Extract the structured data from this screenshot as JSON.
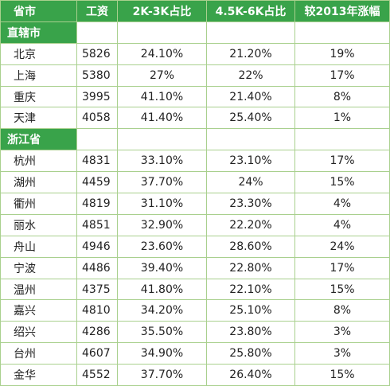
{
  "headers": [
    "省市",
    "工资",
    "2K-3K占比",
    "4.5K-6K占比",
    "较2013年涨幅"
  ],
  "groups": [
    {
      "name": "直辖市",
      "rows": [
        {
          "city": "北京",
          "salary": "5826",
          "p2k3k": "24.10%",
          "p45k6k": "21.20%",
          "growth": "19%"
        },
        {
          "city": "上海",
          "salary": "5380",
          "p2k3k": "27%",
          "p45k6k": "22%",
          "growth": "17%"
        },
        {
          "city": "重庆",
          "salary": "3995",
          "p2k3k": "41.10%",
          "p45k6k": "21.40%",
          "growth": "8%"
        },
        {
          "city": "天津",
          "salary": "4058",
          "p2k3k": "41.40%",
          "p45k6k": "25.40%",
          "growth": "1%"
        }
      ]
    },
    {
      "name": "浙江省",
      "rows": [
        {
          "city": "杭州",
          "salary": "4831",
          "p2k3k": "33.10%",
          "p45k6k": "23.10%",
          "growth": "17%"
        },
        {
          "city": "湖州",
          "salary": "4459",
          "p2k3k": "37.70%",
          "p45k6k": "24%",
          "growth": "15%"
        },
        {
          "city": "衢州",
          "salary": "4819",
          "p2k3k": "31.10%",
          "p45k6k": "23.30%",
          "growth": "4%"
        },
        {
          "city": "丽水",
          "salary": "4851",
          "p2k3k": "32.90%",
          "p45k6k": "22.20%",
          "growth": "4%"
        },
        {
          "city": "舟山",
          "salary": "4946",
          "p2k3k": "23.60%",
          "p45k6k": "28.60%",
          "growth": "24%"
        },
        {
          "city": "宁波",
          "salary": "4486",
          "p2k3k": "39.40%",
          "p45k6k": "22.80%",
          "growth": "17%"
        },
        {
          "city": "温州",
          "salary": "4375",
          "p2k3k": "41.80%",
          "p45k6k": "22.10%",
          "growth": "15%"
        },
        {
          "city": "嘉兴",
          "salary": "4810",
          "p2k3k": "34.20%",
          "p45k6k": "25.10%",
          "growth": "8%"
        },
        {
          "city": "绍兴",
          "salary": "4286",
          "p2k3k": "35.50%",
          "p45k6k": "23.80%",
          "growth": "3%"
        },
        {
          "city": "台州",
          "salary": "4607",
          "p2k3k": "34.90%",
          "p45k6k": "25.80%",
          "growth": "3%"
        },
        {
          "city": "金华",
          "salary": "4552",
          "p2k3k": "37.70%",
          "p45k6k": "26.40%",
          "growth": "15%"
        }
      ]
    }
  ],
  "colors": {
    "header_bg": "#39a34a",
    "grid": "#a9d08e",
    "text": "#222222"
  }
}
